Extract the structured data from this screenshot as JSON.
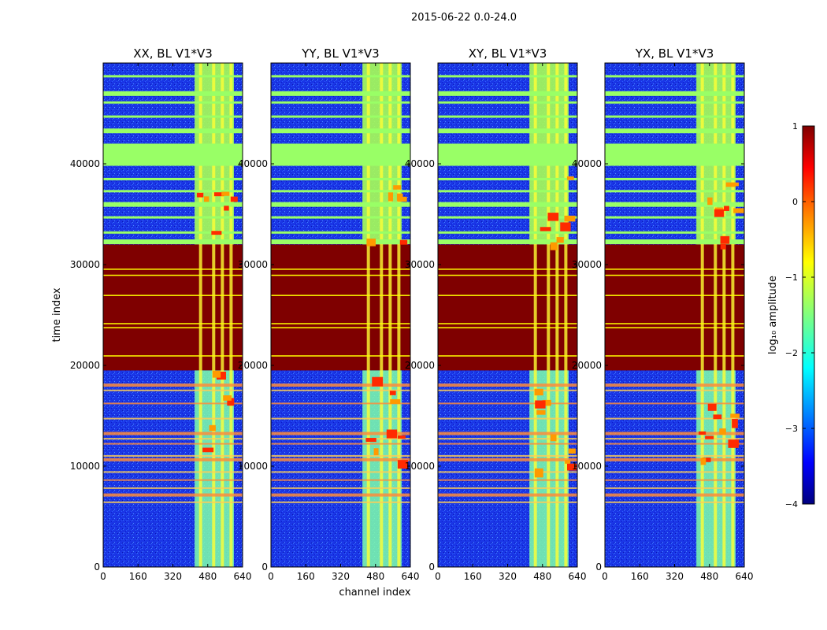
{
  "chart_data": {
    "type": "heatmap",
    "title": "2015-06-22 0.0-24.0",
    "xlabel": "channel index",
    "ylabel": "time index",
    "xlim": [
      0,
      640
    ],
    "ylim": [
      0,
      50000
    ],
    "x_ticks": [
      "0",
      "160",
      "320",
      "480",
      "640"
    ],
    "y_ticks": [
      "0",
      "10000",
      "20000",
      "30000",
      "40000"
    ],
    "panels": [
      {
        "title": "XX, BL V1*V3"
      },
      {
        "title": "YY, BL V1*V3"
      },
      {
        "title": "XY, BL V1*V3"
      },
      {
        "title": "YX, BL V1*V3"
      }
    ],
    "colorbar": {
      "label": "log₁₀ amplitude",
      "range": [
        -4,
        1
      ],
      "ticks": [
        "1",
        "0",
        "−1",
        "−2",
        "−3",
        "−4"
      ],
      "colormap": [
        "#00007f",
        "#0000ff",
        "#007fff",
        "#00ffff",
        "#7fff7f",
        "#ffff00",
        "#ff7f00",
        "#ff0000",
        "#7f0000"
      ]
    },
    "regions": {
      "saturated_time_range": [
        19500,
        32000
      ],
      "active_channel_range": [
        420,
        600
      ],
      "flag_band_range": [
        32000,
        50000
      ]
    }
  }
}
